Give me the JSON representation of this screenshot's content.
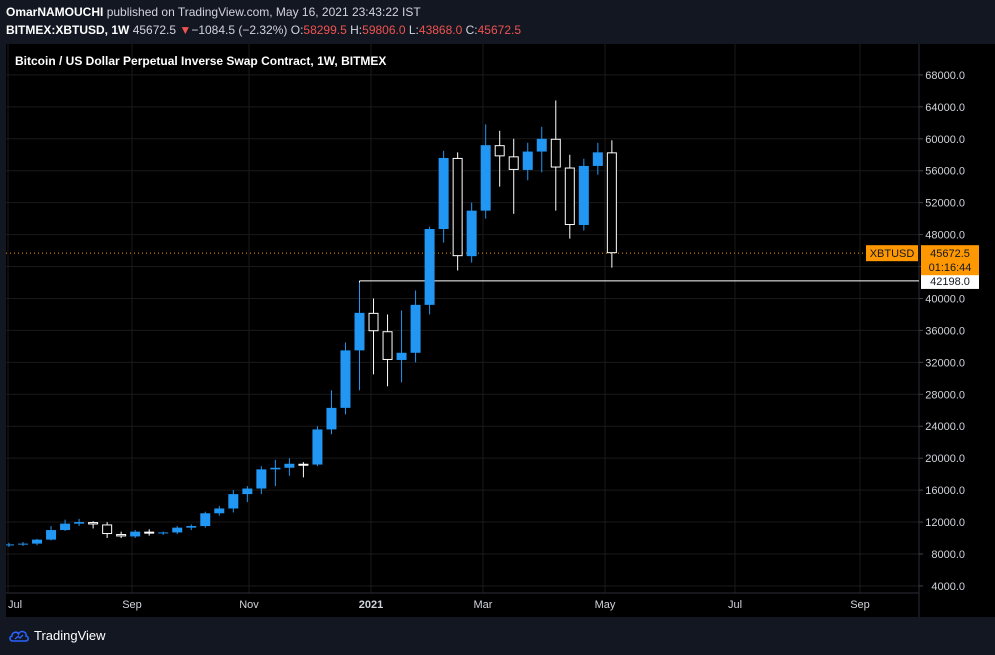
{
  "header": {
    "author": "OmarNAMOUCHI",
    "published_text": "published on TradingView.com, May 16, 2021 23:43:22 IST",
    "symbol": "BITMEX:XBTUSD, 1W",
    "price": "45672.5",
    "change_arrow": "▼",
    "change": "−1084.5 (−2.32%)",
    "o_label": "O:",
    "o_value": "58299.5",
    "h_label": "H:",
    "h_value": "59806.0",
    "l_label": "L:",
    "l_value": "43868.0",
    "c_label": "C:",
    "c_value": "45672.5"
  },
  "footer": {
    "brand": "TradingView"
  },
  "colors": {
    "background": "#000000",
    "up": "#2196f3",
    "down_fill": "#000000",
    "down_border": "#ffffff",
    "label": "#ff9800"
  },
  "chart_data": {
    "type": "candlestick",
    "title": "Bitcoin / US Dollar Perpetual Inverse Swap Contract, 1W, BITMEX",
    "ylim": [
      2000,
      70000
    ],
    "y_ticks": [
      "68000.0",
      "64000.0",
      "60000.0",
      "56000.0",
      "52000.0",
      "48000.0",
      "44000.0",
      "40000.0",
      "36000.0",
      "32000.0",
      "28000.0",
      "24000.0",
      "20000.0",
      "16000.0",
      "12000.0",
      "8000.0",
      "4000.0"
    ],
    "x_ticks": [
      "Jul",
      "Sep",
      "Nov",
      "2021",
      "Mar",
      "May",
      "Jul",
      "Sep"
    ],
    "candles": [
      {
        "o": 9100,
        "h": 9400,
        "l": 8900,
        "c": 9200
      },
      {
        "o": 9200,
        "h": 9500,
        "l": 9000,
        "c": 9300
      },
      {
        "o": 9300,
        "h": 9900,
        "l": 9100,
        "c": 9800
      },
      {
        "o": 9800,
        "h": 11500,
        "l": 9700,
        "c": 11000
      },
      {
        "o": 11000,
        "h": 12300,
        "l": 10900,
        "c": 11800
      },
      {
        "o": 11800,
        "h": 12400,
        "l": 11500,
        "c": 12000
      },
      {
        "o": 12000,
        "h": 12100,
        "l": 11200,
        "c": 11700
      },
      {
        "o": 11700,
        "h": 12000,
        "l": 10000,
        "c": 10500
      },
      {
        "o": 10500,
        "h": 10800,
        "l": 10000,
        "c": 10200
      },
      {
        "o": 10200,
        "h": 11000,
        "l": 10000,
        "c": 10800
      },
      {
        "o": 10800,
        "h": 11100,
        "l": 10300,
        "c": 10600
      },
      {
        "o": 10600,
        "h": 10800,
        "l": 10400,
        "c": 10700
      },
      {
        "o": 10700,
        "h": 11500,
        "l": 10500,
        "c": 11300
      },
      {
        "o": 11300,
        "h": 11700,
        "l": 11000,
        "c": 11500
      },
      {
        "o": 11500,
        "h": 13300,
        "l": 11300,
        "c": 13100
      },
      {
        "o": 13100,
        "h": 14000,
        "l": 12800,
        "c": 13700
      },
      {
        "o": 13700,
        "h": 16000,
        "l": 13200,
        "c": 15500
      },
      {
        "o": 15500,
        "h": 16500,
        "l": 14500,
        "c": 16200
      },
      {
        "o": 16200,
        "h": 19000,
        "l": 15500,
        "c": 18600
      },
      {
        "o": 18600,
        "h": 19800,
        "l": 16500,
        "c": 18800
      },
      {
        "o": 18800,
        "h": 20000,
        "l": 17800,
        "c": 19300
      },
      {
        "o": 19300,
        "h": 19500,
        "l": 17600,
        "c": 19200
      },
      {
        "o": 19200,
        "h": 24000,
        "l": 19000,
        "c": 23600
      },
      {
        "o": 23600,
        "h": 28500,
        "l": 23000,
        "c": 26300
      },
      {
        "o": 26300,
        "h": 34500,
        "l": 25500,
        "c": 33500
      },
      {
        "o": 33500,
        "h": 42000,
        "l": 28500,
        "c": 38200
      },
      {
        "o": 38200,
        "h": 40000,
        "l": 30500,
        "c": 35900
      },
      {
        "o": 35900,
        "h": 38000,
        "l": 29000,
        "c": 32300
      },
      {
        "o": 32300,
        "h": 38500,
        "l": 29500,
        "c": 33200
      },
      {
        "o": 33200,
        "h": 41000,
        "l": 32000,
        "c": 39200
      },
      {
        "o": 39200,
        "h": 49000,
        "l": 38000,
        "c": 48700
      },
      {
        "o": 48700,
        "h": 58500,
        "l": 47000,
        "c": 57600
      },
      {
        "o": 57600,
        "h": 58300,
        "l": 43500,
        "c": 45300
      },
      {
        "o": 45300,
        "h": 52000,
        "l": 44500,
        "c": 51000
      },
      {
        "o": 51000,
        "h": 61800,
        "l": 50000,
        "c": 59200
      },
      {
        "o": 59200,
        "h": 61000,
        "l": 54000,
        "c": 57800
      },
      {
        "o": 57800,
        "h": 60000,
        "l": 50600,
        "c": 56100
      },
      {
        "o": 56100,
        "h": 59500,
        "l": 54800,
        "c": 58400
      },
      {
        "o": 58400,
        "h": 61500,
        "l": 55800,
        "c": 60000
      },
      {
        "o": 60000,
        "h": 64800,
        "l": 51000,
        "c": 56400
      },
      {
        "o": 56400,
        "h": 58000,
        "l": 47500,
        "c": 49200
      },
      {
        "o": 49200,
        "h": 57500,
        "l": 48500,
        "c": 56600
      },
      {
        "o": 56600,
        "h": 59500,
        "l": 55500,
        "c": 58300
      },
      {
        "o": 58300,
        "h": 59806,
        "l": 43868,
        "c": 45672.5
      }
    ],
    "last_price": {
      "value": 45672.5,
      "symbol_label": "XBTUSD",
      "price_label": "45672.5",
      "countdown": "01:16:44"
    },
    "horizontal_line": {
      "value": 42198,
      "label": "42198.0"
    }
  }
}
